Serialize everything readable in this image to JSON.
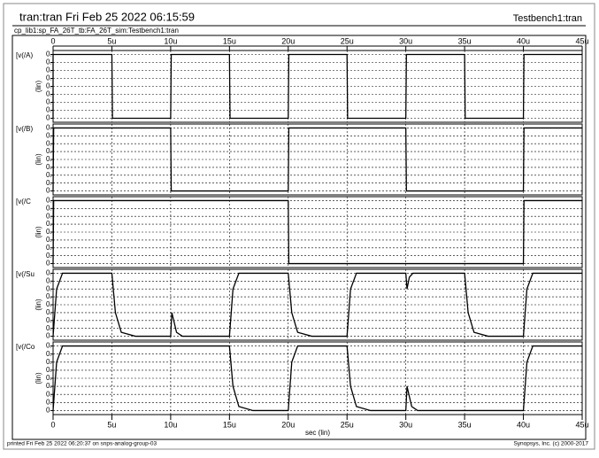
{
  "header": {
    "title": "tran:tran Fri Feb 25 2022 06:15:59",
    "right": "Testbench1:tran",
    "path": "cp_lib1:sp_FA_26T_tb:FA_26T_sim:Testbench1:tran"
  },
  "footer": {
    "left": "printed Fri Feb 25 2022 06:20:37 on snps-analog-group-03",
    "right": "Synopsys, Inc. (c) 2000-2017"
  },
  "chart_data": [
    {
      "type": "line",
      "ylabel": "(lin)",
      "xlim": [
        0,
        45
      ],
      "xticks": [
        0,
        {
          "value": 5,
          "label": "5u"
        },
        {
          "value": 10,
          "label": "10u"
        },
        {
          "value": 15,
          "label": "15u"
        },
        {
          "value": 20,
          "label": "20u"
        },
        {
          "value": 25,
          "label": "25u"
        },
        {
          "value": 30,
          "label": "30u"
        },
        {
          "value": 35,
          "label": "35u"
        },
        {
          "value": 40,
          "label": "40u"
        },
        {
          "value": 45,
          "label": "45u"
        }
      ],
      "ylim": [
        -0.05,
        0.85
      ],
      "yticks": [
        0,
        0.1,
        0.2,
        0.3,
        0.4,
        0.5,
        0.6,
        0.7,
        0.8
      ],
      "grid": true,
      "x": [
        0,
        0,
        5,
        5.05,
        10,
        10.05,
        15,
        15.05,
        20,
        20.05,
        25,
        25.05,
        30,
        30.05,
        35,
        35.05,
        40,
        40.05,
        45
      ],
      "series": [
        {
          "name": "[v(/A)",
          "color": "#000000",
          "values": [
            0,
            0.8,
            0.8,
            0,
            0,
            0.8,
            0.8,
            0,
            0,
            0.8,
            0.8,
            0,
            0,
            0.8,
            0.8,
            0,
            0,
            0.8,
            0.8
          ]
        }
      ]
    },
    {
      "type": "line",
      "ylabel": "(lin)",
      "xlim": [
        0,
        45
      ],
      "xticks": [
        0,
        {
          "value": 5,
          "label": "5u"
        },
        {
          "value": 10,
          "label": "10u"
        },
        {
          "value": 15,
          "label": "15u"
        },
        {
          "value": 20,
          "label": "20u"
        },
        {
          "value": 25,
          "label": "25u"
        },
        {
          "value": 30,
          "label": "30u"
        },
        {
          "value": 35,
          "label": "35u"
        },
        {
          "value": 40,
          "label": "40u"
        },
        {
          "value": 45,
          "label": "45u"
        }
      ],
      "ylim": [
        -0.05,
        0.85
      ],
      "yticks": [
        0,
        0.1,
        0.2,
        0.3,
        0.4,
        0.5,
        0.6,
        0.7,
        0.8
      ],
      "grid": true,
      "x": [
        0,
        0.05,
        10,
        10.05,
        20,
        20.05,
        30,
        30.05,
        40,
        40.05,
        45
      ],
      "series": [
        {
          "name": "[v(/B)",
          "color": "#000000",
          "values": [
            0,
            0.8,
            0.8,
            0,
            0,
            0.8,
            0.8,
            0,
            0,
            0.8,
            0.8
          ]
        }
      ]
    },
    {
      "type": "line",
      "ylabel": "(lin)",
      "xlim": [
        0,
        45
      ],
      "xticks": [
        0,
        {
          "value": 5,
          "label": "5u"
        },
        {
          "value": 10,
          "label": "10u"
        },
        {
          "value": 15,
          "label": "15u"
        },
        {
          "value": 20,
          "label": "20u"
        },
        {
          "value": 25,
          "label": "25u"
        },
        {
          "value": 30,
          "label": "30u"
        },
        {
          "value": 35,
          "label": "35u"
        },
        {
          "value": 40,
          "label": "40u"
        },
        {
          "value": 45,
          "label": "45u"
        }
      ],
      "ylim": [
        -0.05,
        0.85
      ],
      "yticks": [
        0,
        0.1,
        0.2,
        0.3,
        0.4,
        0.5,
        0.6,
        0.7,
        0.8
      ],
      "grid": true,
      "x": [
        0,
        0.05,
        20,
        20.05,
        40,
        40.05,
        45
      ],
      "series": [
        {
          "name": "[v(/C",
          "color": "#000000",
          "values": [
            0,
            0.8,
            0.8,
            0,
            0,
            0.8,
            0.8
          ]
        }
      ]
    },
    {
      "type": "line",
      "ylabel": "(lin)",
      "xlim": [
        0,
        45
      ],
      "xticks": [
        0,
        {
          "value": 5,
          "label": "5u"
        },
        {
          "value": 10,
          "label": "10u"
        },
        {
          "value": 15,
          "label": "15u"
        },
        {
          "value": 20,
          "label": "20u"
        },
        {
          "value": 25,
          "label": "25u"
        },
        {
          "value": 30,
          "label": "30u"
        },
        {
          "value": 35,
          "label": "35u"
        },
        {
          "value": 40,
          "label": "40u"
        },
        {
          "value": 45,
          "label": "45u"
        }
      ],
      "ylim": [
        -0.05,
        0.85
      ],
      "yticks": [
        0,
        0.1,
        0.2,
        0.3,
        0.4,
        0.5,
        0.6,
        0.7,
        0.8
      ],
      "grid": true,
      "x": [
        0,
        0.3,
        0.8,
        5,
        5.3,
        5.8,
        7,
        10,
        10.1,
        10.5,
        11,
        15,
        15.3,
        15.8,
        20,
        20.3,
        20.8,
        22,
        25,
        25.3,
        25.8,
        30,
        30.1,
        30.3,
        30.6,
        35,
        35.3,
        35.8,
        37,
        40,
        40.3,
        40.8,
        45
      ],
      "series": [
        {
          "name": "[v(/Su",
          "color": "#000000",
          "values": [
            0,
            0.6,
            0.8,
            0.8,
            0.3,
            0.05,
            0,
            0,
            0.3,
            0.05,
            0,
            0,
            0.6,
            0.8,
            0.8,
            0.3,
            0.05,
            0,
            0,
            0.6,
            0.8,
            0.8,
            0.6,
            0.75,
            0.8,
            0.8,
            0.3,
            0.05,
            0,
            0,
            0.6,
            0.8,
            0.8
          ]
        }
      ]
    },
    {
      "type": "line",
      "ylabel": "(lin)",
      "xlabel": "sec (lin)",
      "xlim": [
        0,
        45
      ],
      "xticks": [
        0,
        {
          "value": 5,
          "label": "5u"
        },
        {
          "value": 10,
          "label": "10u"
        },
        {
          "value": 15,
          "label": "15u"
        },
        {
          "value": 20,
          "label": "20u"
        },
        {
          "value": 25,
          "label": "25u"
        },
        {
          "value": 30,
          "label": "30u"
        },
        {
          "value": 35,
          "label": "35u"
        },
        {
          "value": 40,
          "label": "40u"
        },
        {
          "value": 45,
          "label": "45u"
        }
      ],
      "ylim": [
        -0.05,
        0.85
      ],
      "yticks": [
        0,
        0.1,
        0.2,
        0.3,
        0.4,
        0.5,
        0.6,
        0.7,
        0.8
      ],
      "grid": true,
      "x": [
        0,
        0.3,
        0.8,
        15,
        15.3,
        15.8,
        17,
        20,
        20.3,
        20.8,
        25,
        25.3,
        25.8,
        27,
        30,
        30.1,
        30.5,
        31,
        40,
        40.3,
        40.8,
        45
      ],
      "series": [
        {
          "name": "[v(/Co",
          "color": "#000000",
          "values": [
            0,
            0.6,
            0.8,
            0.8,
            0.3,
            0.05,
            0,
            0,
            0.6,
            0.8,
            0.8,
            0.3,
            0.05,
            0,
            0,
            0.3,
            0.05,
            0,
            0,
            0.6,
            0.8,
            0.8
          ]
        }
      ]
    }
  ]
}
